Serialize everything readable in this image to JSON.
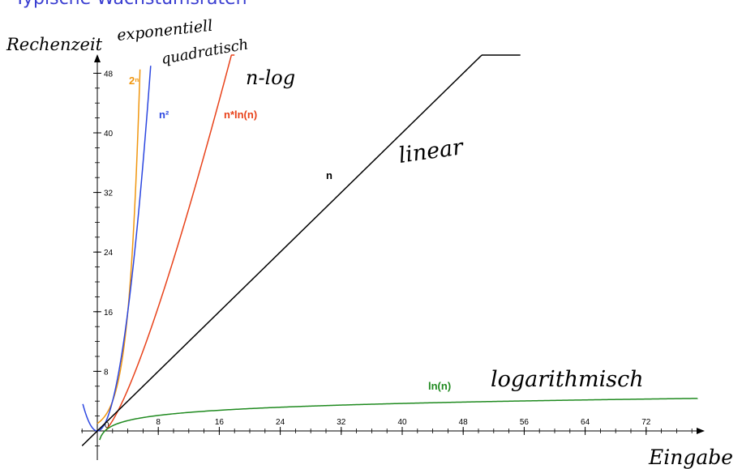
{
  "slide": {
    "title": "Typische Wachstumsraten"
  },
  "annotations": {
    "y_axis": "Rechenzeit",
    "x_axis": "Eingabe",
    "exponential": "exponentiell",
    "quadratic": "quadratisch",
    "nlog": "n-log",
    "linear": "linear",
    "logarithmic": "logarithmisch"
  },
  "chart_data": {
    "type": "line",
    "title": "",
    "xlabel": "Eingabe",
    "ylabel": "Rechenzeit",
    "xlim": [
      -3,
      80
    ],
    "ylim": [
      -3,
      50
    ],
    "x_ticks": [
      "8",
      "16",
      "24",
      "32",
      "40",
      "48",
      "56",
      "64",
      "72"
    ],
    "y_ticks": [
      "8",
      "16",
      "24",
      "32",
      "40",
      "48"
    ],
    "origin_label": "0",
    "grid": false,
    "series": [
      {
        "name": "2ⁿ",
        "function": "2^n",
        "color": "#f0960f",
        "x": [
          0,
          1,
          2,
          3,
          4,
          5,
          5.6
        ],
        "y": [
          1,
          2,
          4,
          8,
          16,
          32,
          48.5
        ]
      },
      {
        "name": "n²",
        "function": "n^2",
        "color": "#2b46e0",
        "x": [
          -1.9,
          -1,
          0,
          1,
          2,
          3,
          4,
          5,
          6,
          7
        ],
        "y": [
          3.6,
          1,
          0,
          1,
          4,
          9,
          16,
          25,
          36,
          49
        ]
      },
      {
        "name": "n*ln(n)",
        "function": "n*ln(n)",
        "color": "#e8421a",
        "x": [
          1,
          2,
          4,
          6,
          8,
          10,
          12,
          14,
          16,
          18
        ],
        "y": [
          0,
          1.39,
          5.55,
          10.75,
          16.64,
          23.03,
          29.82,
          36.95,
          44.36,
          52
        ]
      },
      {
        "name": "n",
        "function": "n",
        "color": "#000000",
        "x": [
          -2,
          0,
          10,
          20,
          30,
          40,
          50,
          55.5
        ],
        "y": [
          -2,
          0,
          10,
          20,
          30,
          40,
          50,
          55.5
        ]
      },
      {
        "name": "ln(n)",
        "function": "ln(n)",
        "color": "#1f8a1f",
        "x": [
          0.3,
          0.5,
          1,
          2,
          4,
          8,
          16,
          24,
          32,
          40,
          48,
          56,
          64,
          72,
          80
        ],
        "y": [
          -1.2,
          -0.69,
          0,
          0.69,
          1.39,
          2.08,
          2.77,
          3.18,
          3.47,
          3.69,
          3.87,
          4.03,
          4.16,
          4.28,
          4.38
        ]
      }
    ]
  }
}
